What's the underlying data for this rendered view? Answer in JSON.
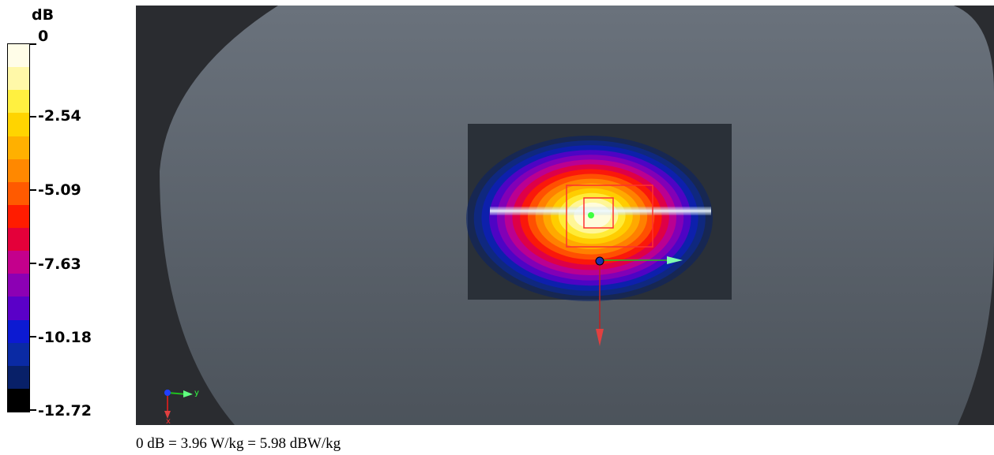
{
  "legend": {
    "unit": "dB",
    "tick_labels": [
      "0",
      "-2.54",
      "-5.09",
      "-7.63",
      "-10.18",
      "-12.72"
    ],
    "colors": [
      "#fffde8",
      "#fff8a8",
      "#fff040",
      "#ffd400",
      "#ffb000",
      "#ff8800",
      "#ff5a00",
      "#ff1c00",
      "#e4003a",
      "#c4008c",
      "#8c00b4",
      "#5a00c8",
      "#0c1ad2",
      "#0a2aa4",
      "#082068",
      "#000000"
    ]
  },
  "viewport": {
    "background_colors": {
      "outer": "#2a2c30",
      "phantom": "#5e6670",
      "scan_area": "#2a3038"
    },
    "axis_labels": {
      "y": "y",
      "x": "x"
    },
    "axis_colors": {
      "x": "#e02020",
      "y": "#20c020",
      "z": "#2040ff"
    }
  },
  "footer": {
    "text": "0 dB = 3.96 W/kg = 5.98 dBW/kg"
  }
}
